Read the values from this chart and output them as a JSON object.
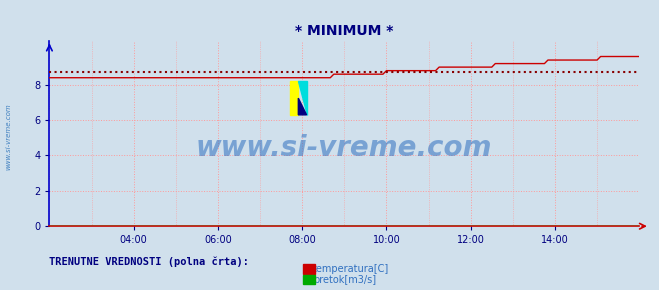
{
  "title": "* MINIMUM *",
  "title_color": "#000080",
  "title_fontsize": 10,
  "bg_color": "#d0e0ec",
  "plot_bg_color": "#d0e0ec",
  "grid_color": "#ff9999",
  "xmin": 0,
  "xmax": 168,
  "ymin": 0,
  "ymax": 10.5,
  "yticks": [
    0,
    2,
    4,
    6,
    8
  ],
  "xtick_labels": [
    "04:00",
    "06:00",
    "08:00",
    "10:00",
    "12:00",
    "14:00"
  ],
  "xtick_positions": [
    24,
    48,
    72,
    96,
    120,
    144
  ],
  "temp_color": "#cc0000",
  "pretok_color": "#00aa00",
  "avg_line_color": "#880000",
  "avg_value": 8.75,
  "watermark_text": "www.si-vreme.com",
  "watermark_color": "#3070c0",
  "watermark_fontsize": 20,
  "left_label": "www.si-vreme.com",
  "left_label_color": "#4080c0",
  "legend_label1": "temperatura[C]",
  "legend_label2": "pretok[m3/s]",
  "legend_color1": "#cc0000",
  "legend_color2": "#00aa00",
  "footer_text": "TRENUTNE VREDNOSTI (polna črta):",
  "footer_color": "#000080",
  "arrow_color": "#cc0000",
  "spine_left_color": "#0000cc",
  "ylabel_color": "#000080",
  "tick_fontsize": 7
}
